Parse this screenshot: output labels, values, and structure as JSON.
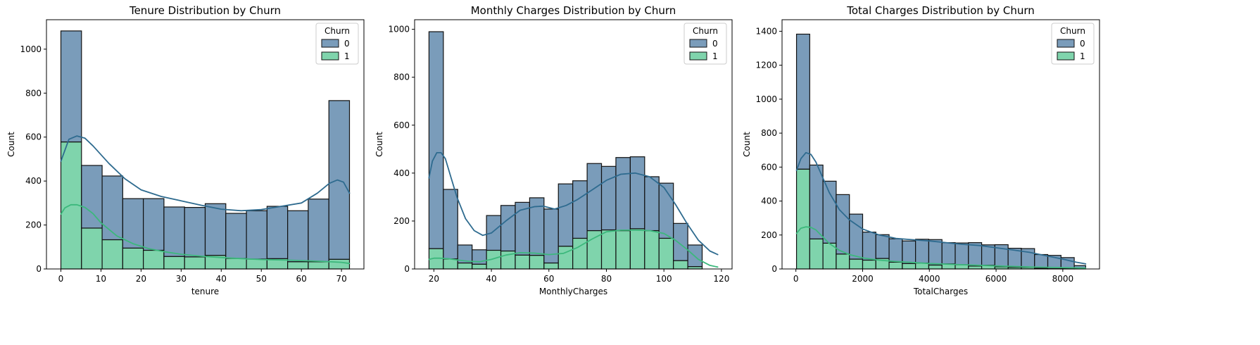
{
  "chart_data": [
    {
      "type": "histogram",
      "title": "Tenure Distribution by Churn",
      "xlabel": "tenure",
      "ylabel": "Count",
      "xlim": [
        -3.6,
        75.6
      ],
      "ylim": [
        0,
        1134
      ],
      "xticks": [
        0,
        10,
        20,
        30,
        40,
        50,
        60,
        70
      ],
      "yticks": [
        0,
        200,
        400,
        600,
        800,
        1000
      ],
      "legend": {
        "title": "Churn",
        "placement": "top-right"
      },
      "bin_edges": [
        0,
        5.14,
        10.29,
        15.43,
        20.57,
        25.71,
        30.86,
        36,
        41.14,
        46.29,
        51.43,
        56.57,
        61.71,
        66.86,
        72
      ],
      "series": [
        {
          "name": "0",
          "color": "#7a9cba",
          "counts": [
            505,
            285,
            290,
            225,
            235,
            225,
            225,
            235,
            205,
            220,
            238,
            232,
            285,
            722
          ]
        },
        {
          "name": "1",
          "color": "#7fd4ac",
          "counts": [
            578,
            186,
            133,
            95,
            85,
            57,
            55,
            62,
            48,
            45,
            47,
            33,
            33,
            44
          ]
        }
      ],
      "kde": [
        {
          "series": "0",
          "color": "#2e6b8f",
          "x": [
            0,
            2,
            4,
            6,
            8,
            12,
            16,
            20,
            25,
            30,
            35,
            40,
            45,
            50,
            55,
            60,
            64,
            67,
            69,
            70.5,
            72
          ],
          "y": [
            490,
            590,
            605,
            595,
            560,
            480,
            410,
            360,
            330,
            310,
            290,
            272,
            265,
            270,
            285,
            300,
            345,
            390,
            405,
            395,
            345
          ]
        },
        {
          "series": "1",
          "color": "#3cb87c",
          "x": [
            0,
            1,
            2.5,
            4,
            6,
            8,
            10,
            14,
            18,
            22,
            26,
            30,
            35,
            40,
            45,
            50,
            55,
            60,
            65,
            70,
            72
          ],
          "y": [
            250,
            278,
            292,
            292,
            280,
            252,
            210,
            150,
            115,
            92,
            78,
            67,
            58,
            52,
            47,
            43,
            41,
            38,
            35,
            30,
            25
          ]
        }
      ]
    },
    {
      "type": "histogram",
      "title": "Monthly Charges Distribution by Churn",
      "xlabel": "MonthlyCharges",
      "ylabel": "Count",
      "xlim": [
        13.3,
        123.7
      ],
      "ylim": [
        0,
        1040
      ],
      "xticks": [
        20,
        40,
        60,
        80,
        100,
        120
      ],
      "yticks": [
        0,
        200,
        400,
        600,
        800,
        1000
      ],
      "legend": {
        "title": "Churn",
        "placement": "top-right"
      },
      "bin_edges": [
        18.3,
        23.3,
        28.3,
        33.3,
        38.3,
        43.3,
        48.3,
        53.3,
        58.3,
        63.3,
        68.3,
        73.3,
        78.3,
        83.3,
        88.3,
        93.3,
        98.3,
        103.3,
        108.3,
        113.3,
        118.3
      ],
      "series": [
        {
          "name": "0",
          "color": "#7a9cba",
          "counts": [
            905,
            290,
            75,
            60,
            145,
            190,
            220,
            240,
            225,
            260,
            240,
            280,
            265,
            305,
            300,
            225,
            230,
            155,
            90
          ]
        },
        {
          "name": "1",
          "color": "#7fd4ac",
          "counts": [
            85,
            42,
            25,
            20,
            78,
            75,
            58,
            57,
            25,
            95,
            128,
            160,
            163,
            160,
            168,
            160,
            128,
            35,
            10
          ]
        }
      ],
      "kde": [
        {
          "series": "0",
          "color": "#2e6b8f",
          "x": [
            18.3,
            19.5,
            21,
            22.5,
            24,
            26,
            28,
            31,
            34,
            37,
            40,
            45,
            50,
            55,
            58,
            62,
            66,
            70,
            75,
            80,
            85,
            90,
            95,
            100,
            104,
            108,
            112,
            116,
            118.7
          ],
          "y": [
            380,
            450,
            485,
            485,
            460,
            380,
            300,
            210,
            160,
            140,
            150,
            200,
            245,
            260,
            262,
            250,
            265,
            290,
            330,
            370,
            395,
            400,
            385,
            340,
            270,
            190,
            120,
            75,
            60
          ]
        },
        {
          "series": "1",
          "color": "#3cb87c",
          "x": [
            18.3,
            20,
            22,
            25,
            28,
            32,
            36,
            40,
            45,
            50,
            55,
            60,
            65,
            70,
            75,
            80,
            85,
            90,
            95,
            100,
            104,
            108,
            112,
            116,
            118.7
          ],
          "y": [
            40,
            45,
            45,
            43,
            38,
            32,
            30,
            40,
            58,
            68,
            66,
            60,
            65,
            90,
            125,
            155,
            162,
            162,
            160,
            148,
            120,
            82,
            40,
            15,
            8
          ]
        }
      ]
    },
    {
      "type": "histogram",
      "title": "Total Charges Distribution by Churn",
      "xlabel": "TotalCharges",
      "ylabel": "Count",
      "xlim": [
        -415,
        9100
      ],
      "ylim": [
        0,
        1468
      ],
      "xticks": [
        0,
        2000,
        4000,
        6000,
        8000
      ],
      "yticks": [
        0,
        200,
        400,
        600,
        800,
        1000,
        1200,
        1400
      ],
      "legend": {
        "title": "Churn",
        "placement": "top-right"
      },
      "bin_edges": [
        18.8,
        415.2,
        811.5,
        1207.9,
        1604.3,
        2000.7,
        2397,
        2793.4,
        3189.8,
        3586.1,
        3982.5,
        4378.9,
        4775.3,
        5171.6,
        5568,
        5964.4,
        6360.7,
        6757.1,
        7153.5,
        7549.8,
        7946.2,
        8342.6,
        8684.8
      ],
      "series": [
        {
          "name": "0",
          "color": "#7a9cba",
          "counts": [
            795,
            435,
            365,
            350,
            265,
            165,
            140,
            138,
            133,
            140,
            150,
            125,
            128,
            138,
            120,
            130,
            112,
            110,
            80,
            78,
            65,
            18
          ]
        },
        {
          "name": "1",
          "color": "#7fd4ac",
          "counts": [
            588,
            177,
            152,
            88,
            58,
            52,
            62,
            40,
            32,
            35,
            23,
            30,
            25,
            17,
            22,
            13,
            10,
            10,
            5,
            2,
            2,
            2
          ]
        }
      ],
      "kde": [
        {
          "series": "0",
          "color": "#2e6b8f",
          "x": [
            18.8,
            150,
            300,
            450,
            600,
            800,
            1000,
            1300,
            1600,
            2000,
            2500,
            3000,
            3500,
            4000,
            4500,
            5000,
            5500,
            6000,
            6500,
            7000,
            7500,
            8000,
            8400,
            8684.8
          ],
          "y": [
            580,
            650,
            685,
            675,
            630,
            540,
            450,
            350,
            290,
            235,
            200,
            180,
            172,
            165,
            155,
            145,
            138,
            125,
            112,
            98,
            78,
            58,
            40,
            30
          ]
        },
        {
          "series": "1",
          "color": "#3cb87c",
          "x": [
            18.8,
            150,
            300,
            450,
            600,
            800,
            1000,
            1300,
            1600,
            2000,
            2500,
            3000,
            3500,
            4000,
            5000,
            6000,
            7000,
            8000,
            8684.8
          ],
          "y": [
            210,
            240,
            248,
            245,
            230,
            190,
            150,
            110,
            85,
            65,
            52,
            44,
            38,
            32,
            25,
            18,
            12,
            8,
            5
          ]
        }
      ]
    }
  ]
}
